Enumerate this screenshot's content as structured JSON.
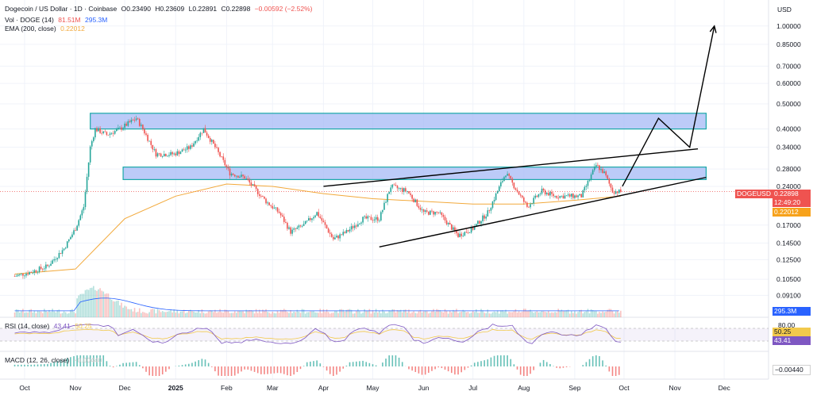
{
  "legend": {
    "symbol_line": "Dogecoin / US Dollar · 1D · Coinbase",
    "open": "O0.23490",
    "high": "H0.23609",
    "low": "L0.22891",
    "close": "C0.22898",
    "change": "−0.00592 (−2.52%)",
    "vol_label": "Vol · DOGE (14)",
    "vol_value": "81.51M",
    "vol_ma": "295.3M",
    "ema_label": "EMA (200, close)",
    "ema_value": "0.22012",
    "rsi_label": "RSI (14, close)",
    "rsi_value": "43.41",
    "rsi_ma": "50.25",
    "macd_label": "MACD (12, 26, close)",
    "macd_value": "−0.00440"
  },
  "badges": {
    "symbol": "DOGEUSD",
    "price": "0.22898",
    "countdown": "12:49:20",
    "ema": "0.22012",
    "volume": "295.3M",
    "rsi_top": "80.00",
    "rsi_ma": "50.25",
    "rsi": "43.41",
    "macd": "−0.00440"
  },
  "colors": {
    "up": "#26a69a",
    "down": "#ef5350",
    "ema": "#f2a93b",
    "zone_fill": "#a5b9f5",
    "zone_border": "#1aa8a8",
    "rsi_line": "#7e57c2",
    "rsi_ma": "#f2c94c",
    "vol_ma": "#2962ff",
    "price_badge": "#ef5350",
    "ema_badge": "#f7a21b",
    "vol_badge": "#2962ff",
    "rsi_badge": "#7e57c2"
  },
  "chart_data": {
    "type": "candlestick",
    "currency": "USD",
    "y_scale": "log",
    "y_ticks": [
      1.0,
      0.85,
      0.7,
      0.6,
      0.5,
      0.4,
      0.34,
      0.28,
      0.24,
      0.17,
      0.145,
      0.125,
      0.105,
      0.091
    ],
    "y_tick_labels": [
      "1.00000",
      "0.85000",
      "0.70000",
      "0.60000",
      "0.50000",
      "0.40000",
      "0.34000",
      "0.28000",
      "0.24000",
      "0.17000",
      "0.14500",
      "0.12500",
      "0.10500",
      "0.09100"
    ],
    "x_labels": [
      "Oct",
      "Nov",
      "Dec",
      "2025",
      "Feb",
      "Mar",
      "Apr",
      "May",
      "Jun",
      "Jul",
      "Aug",
      "Sep",
      "Oct",
      "Nov",
      "Dec"
    ],
    "price_path": [
      [
        "2024-09-25",
        0.108
      ],
      [
        "2024-10-05",
        0.112
      ],
      [
        "2024-10-15",
        0.118
      ],
      [
        "2024-10-25",
        0.138
      ],
      [
        "2024-11-01",
        0.165
      ],
      [
        "2024-11-06",
        0.2
      ],
      [
        "2024-11-10",
        0.34
      ],
      [
        "2024-11-13",
        0.4
      ],
      [
        "2024-11-20",
        0.38
      ],
      [
        "2024-11-28",
        0.4
      ],
      [
        "2024-12-08",
        0.44
      ],
      [
        "2024-12-12",
        0.4
      ],
      [
        "2024-12-20",
        0.32
      ],
      [
        "2024-12-31",
        0.32
      ],
      [
        "2025-01-10",
        0.34
      ],
      [
        "2025-01-18",
        0.4
      ],
      [
        "2025-01-25",
        0.34
      ],
      [
        "2025-02-03",
        0.27
      ],
      [
        "2025-02-12",
        0.26
      ],
      [
        "2025-02-25",
        0.21
      ],
      [
        "2025-03-05",
        0.19
      ],
      [
        "2025-03-12",
        0.16
      ],
      [
        "2025-03-20",
        0.17
      ],
      [
        "2025-03-28",
        0.19
      ],
      [
        "2025-04-07",
        0.15
      ],
      [
        "2025-04-15",
        0.16
      ],
      [
        "2025-04-25",
        0.18
      ],
      [
        "2025-05-05",
        0.18
      ],
      [
        "2025-05-12",
        0.24
      ],
      [
        "2025-05-22",
        0.23
      ],
      [
        "2025-06-01",
        0.19
      ],
      [
        "2025-06-10",
        0.19
      ],
      [
        "2025-06-22",
        0.155
      ],
      [
        "2025-07-01",
        0.165
      ],
      [
        "2025-07-10",
        0.19
      ],
      [
        "2025-07-21",
        0.27
      ],
      [
        "2025-07-28",
        0.23
      ],
      [
        "2025-08-03",
        0.2
      ],
      [
        "2025-08-12",
        0.23
      ],
      [
        "2025-08-20",
        0.22
      ],
      [
        "2025-08-28",
        0.22
      ],
      [
        "2025-09-05",
        0.22
      ],
      [
        "2025-09-14",
        0.29
      ],
      [
        "2025-09-19",
        0.27
      ],
      [
        "2025-09-24",
        0.23
      ],
      [
        "2025-09-29",
        0.229
      ]
    ],
    "ema_200_path": [
      [
        "2024-09-25",
        0.11
      ],
      [
        "2024-11-01",
        0.115
      ],
      [
        "2024-12-01",
        0.18
      ],
      [
        "2025-01-01",
        0.22
      ],
      [
        "2025-02-01",
        0.245
      ],
      [
        "2025-03-01",
        0.24
      ],
      [
        "2025-04-01",
        0.225
      ],
      [
        "2025-05-01",
        0.215
      ],
      [
        "2025-06-01",
        0.21
      ],
      [
        "2025-07-01",
        0.205
      ],
      [
        "2025-08-01",
        0.205
      ],
      [
        "2025-09-01",
        0.212
      ],
      [
        "2025-09-29",
        0.22012
      ]
    ],
    "resistance_zones": [
      {
        "from": "2024-11-10",
        "to": "2025-11-20",
        "low": 0.4,
        "high": 0.46
      },
      {
        "from": "2024-11-30",
        "to": "2025-11-20",
        "low": 0.255,
        "high": 0.285
      }
    ],
    "trendlines": [
      {
        "from": [
          "2025-04-01",
          0.24
        ],
        "to": [
          "2025-11-15",
          0.335
        ]
      },
      {
        "from": [
          "2025-05-05",
          0.14
        ],
        "to": [
          "2025-11-20",
          0.26
        ]
      }
    ],
    "projection_path": [
      [
        "2025-09-30",
        0.24
      ],
      [
        "2025-10-22",
        0.44
      ],
      [
        "2025-11-10",
        0.34
      ],
      [
        "2025-11-25",
        1.0
      ]
    ],
    "rsi_range": [
      0,
      100
    ],
    "rsi_ticks": [
      80.0,
      50.25,
      43.41
    ],
    "macd_last": -0.0044
  }
}
